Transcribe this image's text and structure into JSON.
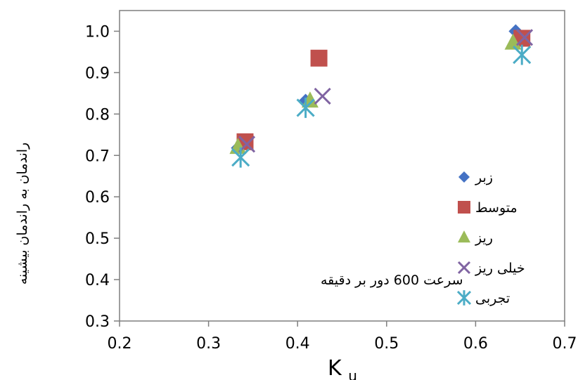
{
  "chart_data": {
    "type": "scatter",
    "xlabel": "K",
    "xlabel_sub": "u",
    "ylabel": "راندمان به راندمان بیشینه",
    "annotation": "سرعت 600 دور بر دقیقه",
    "xlim": [
      0.2,
      0.7
    ],
    "ylim": [
      0.3,
      1.05
    ],
    "x_ticks": [
      "0.2",
      "0.3",
      "0.4",
      "0.5",
      "0.6",
      "0.7"
    ],
    "y_ticks": [
      "0.3",
      "0.4",
      "0.5",
      "0.6",
      "0.7",
      "0.8",
      "0.9",
      "1.0"
    ],
    "grid": false,
    "legend_position": "right",
    "series": [
      {
        "name": "زبر",
        "marker": "diamond",
        "color": "#4472C4",
        "points": [
          [
            0.333,
            0.718
          ],
          [
            0.409,
            0.832
          ],
          [
            0.645,
            1.0
          ]
        ]
      },
      {
        "name": "متوسط",
        "marker": "square",
        "color": "#C0504D",
        "points": [
          [
            0.341,
            0.733
          ],
          [
            0.424,
            0.935
          ],
          [
            0.652,
            0.983
          ]
        ]
      },
      {
        "name": "ریز",
        "marker": "triangle",
        "color": "#9BBB59",
        "points": [
          [
            0.333,
            0.72
          ],
          [
            0.414,
            0.832
          ],
          [
            0.642,
            0.972
          ]
        ]
      },
      {
        "name": "خیلی ریز",
        "marker": "x",
        "color": "#8064A2",
        "points": [
          [
            0.343,
            0.727
          ],
          [
            0.428,
            0.843
          ],
          [
            0.655,
            0.985
          ]
        ]
      },
      {
        "name": "تجربی",
        "marker": "asterisk",
        "color": "#4BACC6",
        "points": [
          [
            0.336,
            0.695
          ],
          [
            0.409,
            0.815
          ],
          [
            0.652,
            0.943
          ]
        ]
      }
    ]
  }
}
